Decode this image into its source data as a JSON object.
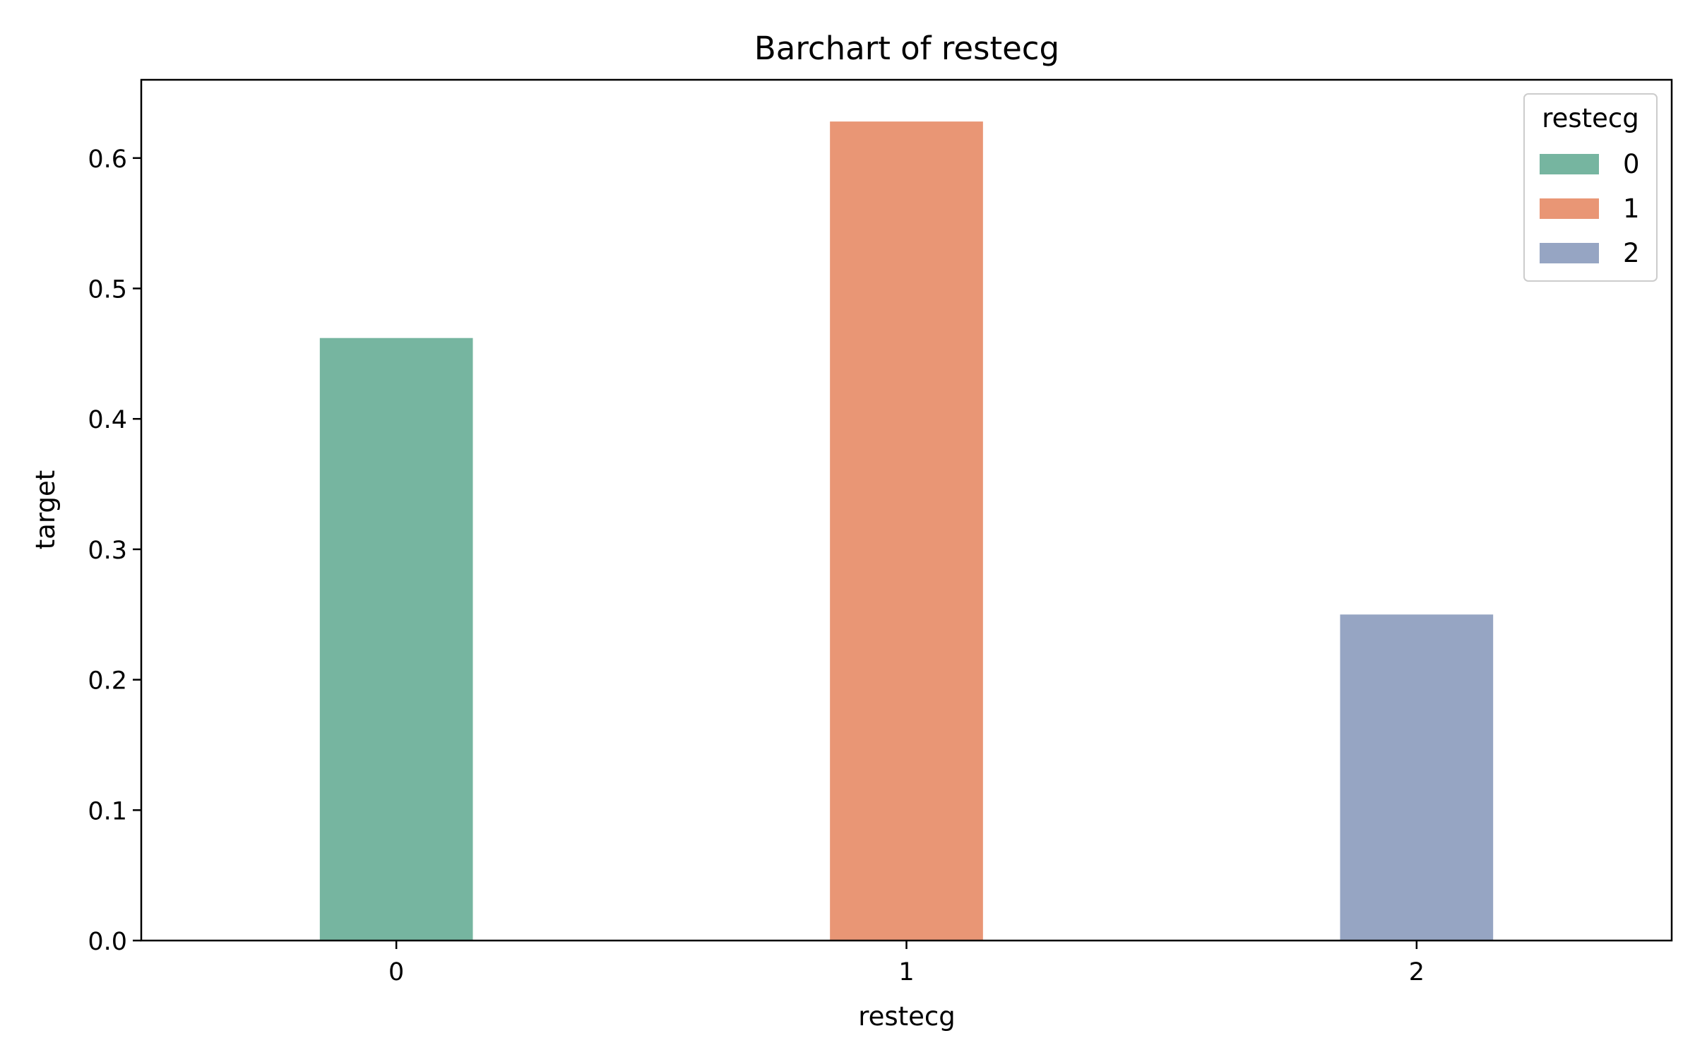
{
  "chart_data": {
    "type": "bar",
    "title": "Barchart of restecg",
    "xlabel": "restecg",
    "ylabel": "target",
    "categories": [
      "0",
      "1",
      "2"
    ],
    "values": [
      0.462,
      0.628,
      0.25
    ],
    "ylim": [
      0,
      0.66
    ],
    "yticks": [
      0.0,
      0.1,
      0.2,
      0.3,
      0.4,
      0.5,
      0.6
    ],
    "ytick_labels": [
      "0.0",
      "0.1",
      "0.2",
      "0.3",
      "0.4",
      "0.5",
      "0.6"
    ],
    "grid": false,
    "colors": [
      "#76b5a0",
      "#e99675",
      "#96a5c3"
    ],
    "legend": {
      "title": "restecg",
      "placement": "top-right",
      "entries": [
        "0",
        "1",
        "2"
      ]
    }
  }
}
